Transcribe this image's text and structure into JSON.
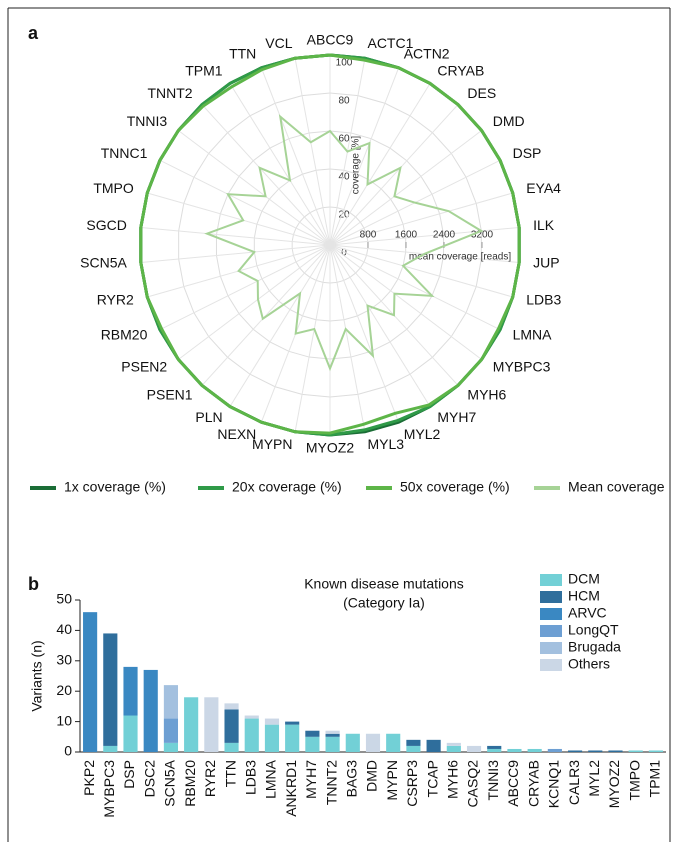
{
  "chart_data": [
    {
      "type": "radar",
      "panel_label": "a",
      "categories": [
        "ABCC9",
        "ACTC1",
        "ACTN2",
        "CRYAB",
        "DES",
        "DMD",
        "DSP",
        "EYA4",
        "ILK",
        "JUP",
        "LDB3",
        "LMNA",
        "MYBPC3",
        "MYH6",
        "MYH7",
        "MYL2",
        "MYL3",
        "MYOZ2",
        "MYPN",
        "NEXN",
        "PLN",
        "PSEN1",
        "PSEN2",
        "RBM20",
        "RYR2",
        "SCN5A",
        "SGCD",
        "TMPO",
        "TNNC1",
        "TNNI3",
        "TNNT2",
        "TPM1",
        "TTN",
        "VCL"
      ],
      "rlabel": "coverage [%]",
      "rlim": [
        0,
        100
      ],
      "rticks": [
        0,
        20,
        40,
        60,
        80,
        100
      ],
      "r2label": "mean coverage [reads]",
      "r2lim": [
        0,
        4000
      ],
      "r2ticks": [
        800,
        1600,
        2400,
        3200
      ],
      "series": [
        {
          "name": "1x coverage (%)",
          "color": "#1b6d36",
          "values": [
            100,
            100,
            100,
            100,
            100,
            100,
            100,
            100,
            100,
            100,
            100,
            100,
            100,
            100,
            100,
            100,
            100,
            100,
            100,
            100,
            100,
            100,
            100,
            100,
            100,
            100,
            100,
            100,
            100,
            100,
            100,
            100,
            100,
            100
          ]
        },
        {
          "name": "20x coverage (%)",
          "color": "#2f9a48",
          "values": [
            100,
            100,
            100,
            100,
            100,
            100,
            100,
            100,
            100,
            100,
            100,
            100,
            100,
            100,
            100,
            99,
            99,
            100,
            100,
            100,
            100,
            100,
            100,
            100,
            100,
            100,
            100,
            100,
            100,
            100,
            100,
            100,
            100,
            100
          ]
        },
        {
          "name": "50x coverage (%)",
          "color": "#5db548",
          "values": [
            100,
            99,
            100,
            100,
            100,
            100,
            100,
            100,
            100,
            100,
            100,
            99,
            100,
            100,
            99,
            95,
            96,
            99,
            100,
            100,
            100,
            100,
            100,
            99,
            100,
            100,
            100,
            100,
            100,
            100,
            99,
            98,
            99,
            100
          ]
        },
        {
          "name": "Mean coverage",
          "color": "#a6d396",
          "axis": "r2",
          "values": [
            2400,
            2000,
            2300,
            1500,
            2200,
            1700,
            2000,
            2600,
            3200,
            2000,
            1600,
            2400,
            1700,
            2000,
            1500,
            2500,
            1800,
            2600,
            1800,
            2000,
            1200,
            2100,
            1900,
            1700,
            2000,
            1600,
            2600,
            1900,
            2400,
            1700,
            2200,
            1600,
            2900,
            2200
          ]
        }
      ]
    },
    {
      "type": "stacked_bar",
      "panel_label": "b",
      "title": "Known disease mutations",
      "subtitle": "(Category Ia)",
      "ylabel": "Variants (n)",
      "ylim": [
        0,
        50
      ],
      "yticks": [
        0,
        10,
        20,
        30,
        40,
        50
      ],
      "categories": [
        "PKP2",
        "MYBPC3",
        "DSP",
        "DSC2",
        "SCN5A",
        "RBM20",
        "RYR2",
        "TTN",
        "LDB3",
        "LMNA",
        "ANKRD1",
        "MYH7",
        "TNNT2",
        "BAG3",
        "DMD",
        "MYPN",
        "CSRP3",
        "TCAP",
        "MYH6",
        "CASQ2",
        "TNNI3",
        "ABCC9",
        "CRYAB",
        "KCNQ1",
        "CALR3",
        "MYL2",
        "MYOZ2",
        "TMPO",
        "TPM1"
      ],
      "series": [
        {
          "name": "DCM",
          "color": "#72d0d6",
          "values": [
            0,
            2,
            12,
            0,
            3,
            18,
            0,
            3,
            11,
            9,
            9,
            5,
            5,
            6,
            0,
            6,
            2,
            0,
            2,
            0,
            1,
            1,
            1,
            0,
            0,
            0,
            0,
            0.5,
            0.5
          ]
        },
        {
          "name": "HCM",
          "color": "#2f6e9c",
          "values": [
            0,
            37,
            0,
            0,
            0,
            0,
            0,
            11,
            0,
            0,
            1,
            2,
            1,
            0,
            0,
            0,
            2,
            4,
            0,
            0,
            1,
            0,
            0,
            0,
            0.5,
            0.5,
            0.5,
            0,
            0
          ]
        },
        {
          "name": "ARVC",
          "color": "#3a88c2",
          "values": [
            46,
            0,
            16,
            27,
            0,
            0,
            0,
            0,
            0,
            0,
            0,
            0,
            0,
            0,
            0,
            0,
            0,
            0,
            0,
            0,
            0,
            0,
            0,
            0,
            0,
            0,
            0,
            0,
            0
          ]
        },
        {
          "name": "LongQT",
          "color": "#6d9fd3",
          "values": [
            0,
            0,
            0,
            0,
            8,
            0,
            0,
            0,
            0,
            0,
            0,
            0,
            0,
            0,
            0,
            0,
            0,
            0,
            0,
            0,
            0,
            0,
            0,
            1,
            0,
            0,
            0,
            0,
            0
          ]
        },
        {
          "name": "Brugada",
          "color": "#a3c0df",
          "values": [
            0,
            0,
            0,
            0,
            11,
            0,
            0,
            0,
            0,
            0,
            0,
            0,
            0,
            0,
            0,
            0,
            0,
            0,
            0,
            0,
            0,
            0,
            0,
            0,
            0,
            0,
            0,
            0,
            0
          ]
        },
        {
          "name": "Others",
          "color": "#cbd7e6",
          "values": [
            0,
            0,
            0,
            0,
            0,
            0,
            18,
            2,
            1,
            2,
            0,
            0,
            1,
            0,
            6,
            0,
            0,
            0,
            1,
            2,
            0,
            0,
            0,
            0,
            0,
            0,
            0,
            0,
            0
          ]
        }
      ]
    }
  ]
}
